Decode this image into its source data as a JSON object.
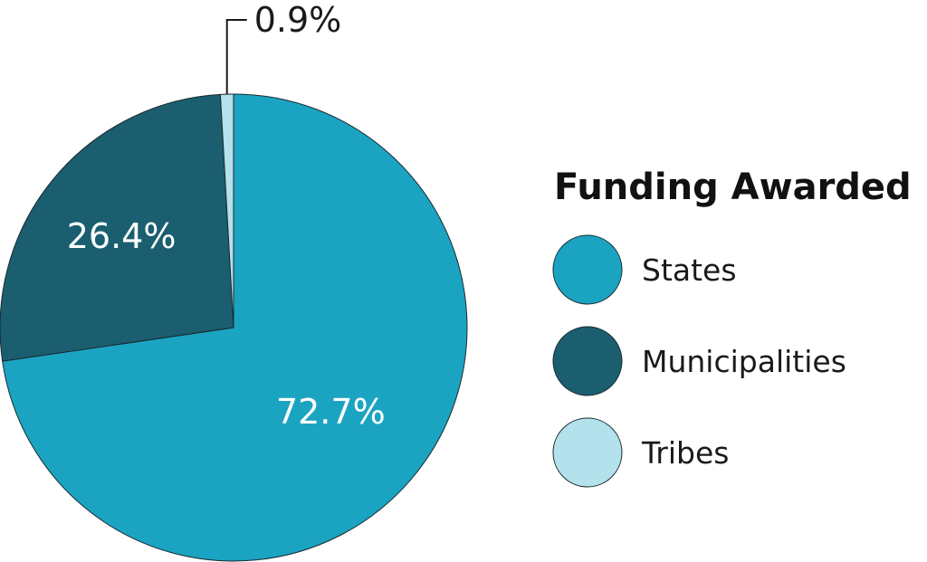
{
  "chart_data": {
    "type": "pie",
    "title": "Funding Awarded",
    "categories": [
      "States",
      "Municipalities",
      "Tribes"
    ],
    "values": [
      72.7,
      26.4,
      0.9
    ],
    "labels": [
      "72.7%",
      "26.4%",
      "0.9%"
    ],
    "colors": [
      "#1ba4c2",
      "#1a5e70",
      "#b3e1ec"
    ],
    "start_angle_deg": 0,
    "direction": "clockwise-from-top",
    "legend_placement": "right"
  }
}
